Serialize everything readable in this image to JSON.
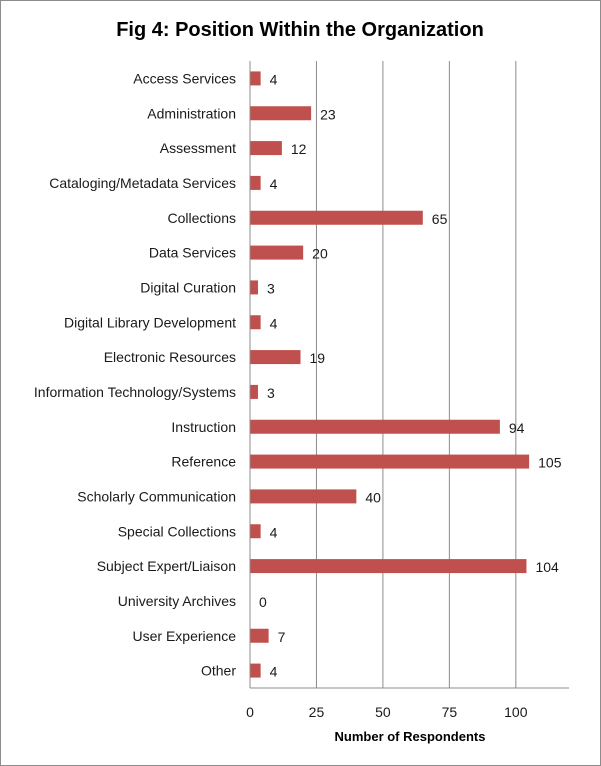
{
  "chart_data": {
    "type": "bar",
    "orientation": "horizontal",
    "title": "Fig 4: Position Within the Organization",
    "xlabel": "Number of Respondents",
    "ylabel": "",
    "categories": [
      "Access Services",
      "Administration",
      "Assessment",
      "Cataloging/Metadata Services",
      "Collections",
      "Data Services",
      "Digital Curation",
      "Digital Library Development",
      "Electronic Resources",
      "Information Technology/Systems",
      "Instruction",
      "Reference",
      "Scholarly Communication",
      "Special Collections",
      "Subject Expert/Liaison",
      "University Archives",
      "User Experience",
      "Other"
    ],
    "values": [
      4,
      23,
      12,
      4,
      65,
      20,
      3,
      4,
      19,
      3,
      94,
      105,
      40,
      4,
      104,
      0,
      7,
      4
    ],
    "xlim": [
      0,
      120
    ],
    "xticks": [
      0,
      25,
      50,
      75,
      100
    ],
    "grid": "vertical",
    "legend": "none",
    "data_labels": true,
    "colors": {
      "bar": "#c0504d",
      "grid": "#8c8c8c",
      "text": "#1a1a1a"
    }
  }
}
